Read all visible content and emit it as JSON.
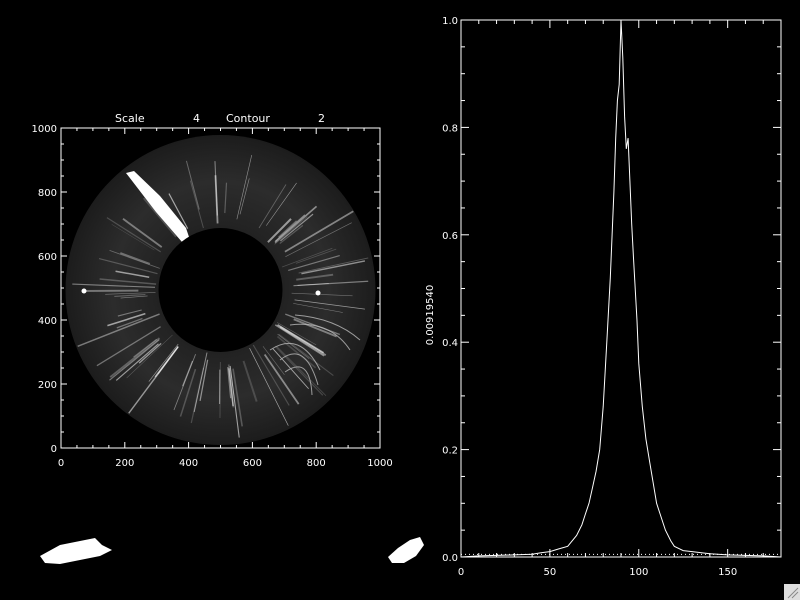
{
  "chart_data": [
    {
      "type": "image",
      "title_parts": [
        "Scale",
        "4",
        "Contour",
        "2"
      ],
      "xlim": [
        0,
        1000
      ],
      "ylim": [
        0,
        1000
      ],
      "xticks": [
        0,
        200,
        400,
        600,
        800,
        1000
      ],
      "yticks": [
        0,
        200,
        400,
        600,
        800,
        1000
      ],
      "xtick_labels": [
        "0",
        "200",
        "400",
        "600",
        "800",
        "1000"
      ],
      "ytick_labels": [
        "0",
        "200",
        "400",
        "600",
        "800",
        "1000"
      ],
      "annulus": {
        "center": [
          500,
          485
        ],
        "inner_radius": 195,
        "outer_radius": 490
      },
      "colors": {
        "background": "#000000",
        "foreground": "#ffffff"
      }
    },
    {
      "type": "line",
      "ylabel": "0.00919540",
      "xlim": [
        0,
        180
      ],
      "ylim": [
        0,
        1.0
      ],
      "xticks": [
        0,
        50,
        100,
        150
      ],
      "yticks": [
        0,
        0.2,
        0.4,
        0.6,
        0.8,
        1.0
      ],
      "xtick_labels": [
        "0",
        "50",
        "100",
        "150"
      ],
      "ytick_labels": [
        "0.0",
        "0.2",
        "0.4",
        "0.6",
        "0.8",
        "1.0"
      ],
      "baseline_dotted": 0.005,
      "series": [
        {
          "x": [
            0,
            10,
            20,
            30,
            40,
            45,
            50,
            55,
            60,
            65,
            68,
            70,
            72,
            74,
            76,
            78,
            80,
            82,
            84,
            85,
            86,
            87,
            88,
            89,
            90,
            91,
            92,
            93,
            94,
            95,
            96,
            97,
            98,
            99,
            100,
            102,
            104,
            106,
            108,
            110,
            112,
            115,
            118,
            120,
            125,
            130,
            140,
            150,
            160,
            170,
            180
          ],
          "y": [
            0.0,
            0.002,
            0.003,
            0.004,
            0.005,
            0.008,
            0.01,
            0.015,
            0.02,
            0.04,
            0.06,
            0.08,
            0.1,
            0.13,
            0.16,
            0.2,
            0.28,
            0.4,
            0.52,
            0.6,
            0.68,
            0.78,
            0.85,
            0.88,
            1.0,
            0.93,
            0.82,
            0.76,
            0.78,
            0.7,
            0.62,
            0.56,
            0.5,
            0.44,
            0.36,
            0.28,
            0.22,
            0.18,
            0.14,
            0.1,
            0.08,
            0.05,
            0.03,
            0.02,
            0.012,
            0.01,
            0.006,
            0.004,
            0.003,
            0.002,
            0.0
          ]
        }
      ],
      "colors": {
        "line": "#ffffff",
        "background": "#000000"
      }
    }
  ]
}
